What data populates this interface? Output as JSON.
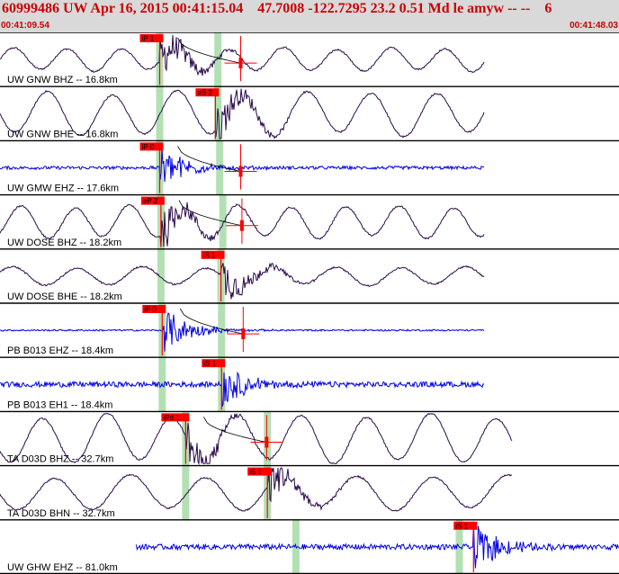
{
  "header": {
    "title": "60999486 UW Apr 16, 2015 00:41:15.04    47.7008 -122.7295 23.2 0.51 Md le amyw -- --    6",
    "start_time": "00:41:09.54",
    "end_time": "00:41:48.03"
  },
  "colors": {
    "header_bg": "#d9d9d9",
    "header_text": "#cc0000",
    "trace_dark": "#2a0a4a",
    "trace_blue": "#0000e6",
    "pick_box": "#ff0000",
    "time_window": "#b3e0b3",
    "divider": "#000000"
  },
  "traces": [
    {
      "label": "UW GNW BHZ -- 16.8km",
      "color": "dark",
      "picks": [
        {
          "label": "iP 1",
          "t": 0.258
        }
      ],
      "windows": [
        0.258,
        0.352
      ],
      "duration_marker": true,
      "data_end": 0.782,
      "amplitude": 0.2
    },
    {
      "label": "UW GNW BHE -- 16.8km",
      "color": "dark",
      "picks": [
        {
          "label": "eS 2",
          "t": 0.348
        }
      ],
      "windows": [
        0.258,
        0.352
      ],
      "duration_marker": false,
      "data_end": 0.782,
      "amplitude": 0.38
    },
    {
      "label": "UW GMW EHZ -- 17.6km",
      "color": "blue",
      "picks": [
        {
          "label": "iP 0",
          "t": 0.258
        }
      ],
      "windows": [
        0.258,
        0.355
      ],
      "duration_marker": true,
      "data_end": 0.782,
      "amplitude": 0.06
    },
    {
      "label": "UW DOSE BHZ -- 18.2km",
      "color": "dark",
      "picks": [
        {
          "label": "eP 2",
          "t": 0.26
        }
      ],
      "windows": [
        0.26,
        0.36
      ],
      "duration_marker": true,
      "data_end": 0.782,
      "amplitude": 0.28
    },
    {
      "label": "UW DOSE BHE -- 18.2km",
      "color": "dark",
      "picks": [
        {
          "label": "iS 1",
          "t": 0.357
        }
      ],
      "windows": [
        0.26,
        0.357
      ],
      "duration_marker": false,
      "data_end": 0.782,
      "amplitude": 0.16
    },
    {
      "label": "PB B013 EHZ -- 18.4km",
      "color": "blue",
      "picks": [
        {
          "label": "iP 0",
          "t": 0.262
        }
      ],
      "windows": [
        0.262,
        0.358
      ],
      "duration_marker": true,
      "data_end": 0.782,
      "amplitude": 0.03
    },
    {
      "label": "PB B013 EH1 -- 18.4km",
      "color": "blue",
      "picks": [
        {
          "label": "iS 1",
          "t": 0.358
        }
      ],
      "windows": [
        0.262,
        0.358
      ],
      "duration_marker": false,
      "data_end": 0.782,
      "amplitude": 0.1
    },
    {
      "label": "TA D03D BHZ -- 32.7km",
      "color": "dark",
      "picks": [
        {
          "label": "iPd 1",
          "t": 0.3
        }
      ],
      "windows": [
        0.3,
        0.432
      ],
      "duration_marker": true,
      "data_end": 0.828,
      "amplitude": 0.42
    },
    {
      "label": "TA D03D BHN -- 32.7km",
      "color": "dark",
      "picks": [
        {
          "label": "iS 1",
          "t": 0.432
        }
      ],
      "windows": [
        0.3,
        0.432
      ],
      "duration_marker": false,
      "data_end": 0.828,
      "amplitude": 0.3
    },
    {
      "label": "UW GHW EHZ -- 81.0km",
      "color": "blue",
      "picks": [
        {
          "label": "iS 1",
          "t": 0.765
        }
      ],
      "windows": [
        0.478,
        0.742
      ],
      "duration_marker": false,
      "data_start": 0.22,
      "data_end": 1.0,
      "amplitude": 0.1
    }
  ]
}
